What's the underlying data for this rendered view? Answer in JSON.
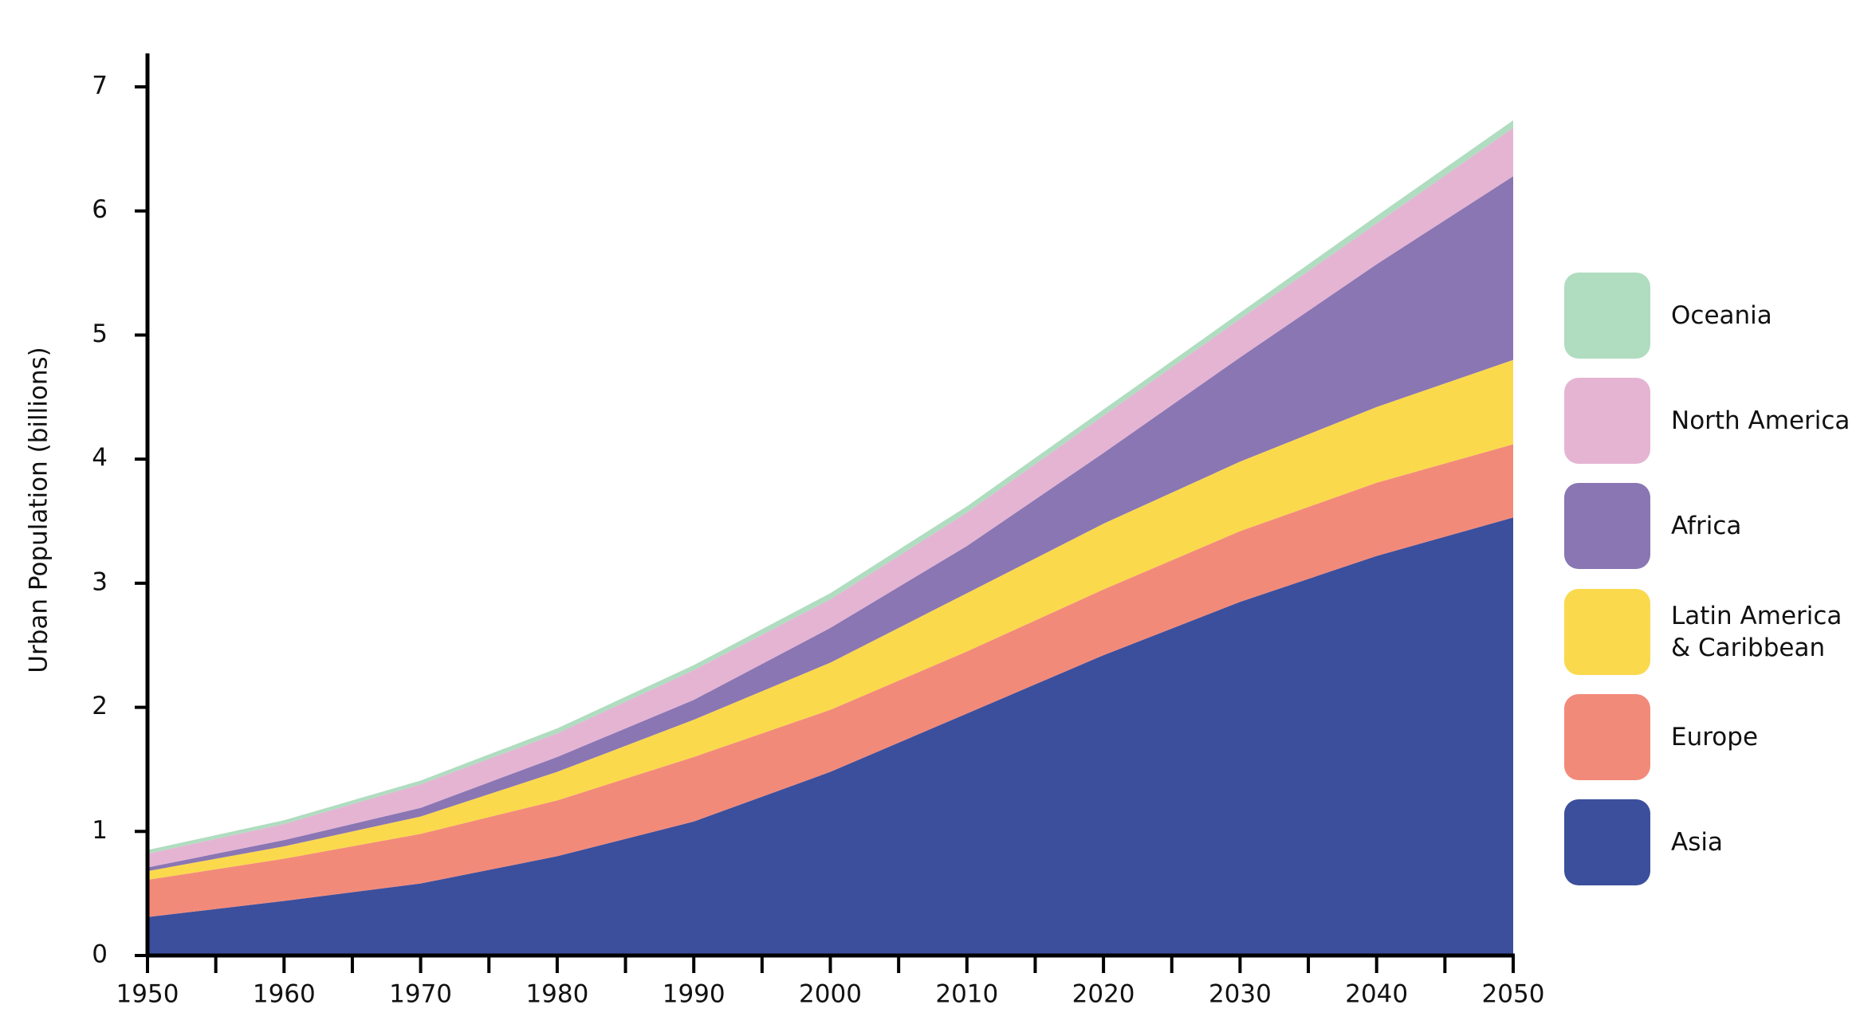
{
  "chart_data": {
    "type": "stacked_area",
    "y_label": "Urban Population (billions)",
    "x": [
      1950,
      1960,
      1970,
      1980,
      1990,
      2000,
      2010,
      2020,
      2030,
      2040,
      2050
    ],
    "series": [
      {
        "name": "Asia",
        "color": "#3c4f9c",
        "values": [
          0.31,
          0.44,
          0.58,
          0.8,
          1.08,
          1.48,
          1.95,
          2.42,
          2.85,
          3.22,
          3.53
        ]
      },
      {
        "name": "Europe",
        "color": "#f28a7a",
        "values": [
          0.3,
          0.34,
          0.4,
          0.45,
          0.52,
          0.5,
          0.5,
          0.53,
          0.57,
          0.59,
          0.59
        ]
      },
      {
        "name": "Latin America & Caribbean",
        "color": "#fbd94d",
        "values": [
          0.07,
          0.1,
          0.14,
          0.23,
          0.3,
          0.38,
          0.47,
          0.53,
          0.56,
          0.61,
          0.68
        ]
      },
      {
        "name": "Africa",
        "color": "#8a76b3",
        "values": [
          0.03,
          0.05,
          0.07,
          0.12,
          0.16,
          0.28,
          0.38,
          0.57,
          0.84,
          1.15,
          1.48
        ]
      },
      {
        "name": "North America",
        "color": "#e5b4d3",
        "values": [
          0.11,
          0.13,
          0.19,
          0.19,
          0.24,
          0.23,
          0.27,
          0.3,
          0.31,
          0.33,
          0.39
        ]
      },
      {
        "name": "Oceania",
        "color": "#b0dcc0",
        "values": [
          0.03,
          0.03,
          0.03,
          0.04,
          0.04,
          0.05,
          0.05,
          0.05,
          0.05,
          0.06,
          0.06
        ]
      }
    ],
    "xlim": [
      1950,
      2050
    ],
    "xticks": [
      1950,
      1960,
      1970,
      1980,
      1990,
      2000,
      2010,
      2020,
      2030,
      2040,
      2050
    ],
    "xminorticks": [
      1955,
      1965,
      1975,
      1985,
      1995,
      2005,
      2015,
      2025,
      2035,
      2045
    ],
    "ylim": [
      0,
      7
    ],
    "yticks": [
      0,
      1,
      2,
      3,
      4,
      5,
      6,
      7
    ],
    "grid": false,
    "legend": "right"
  }
}
